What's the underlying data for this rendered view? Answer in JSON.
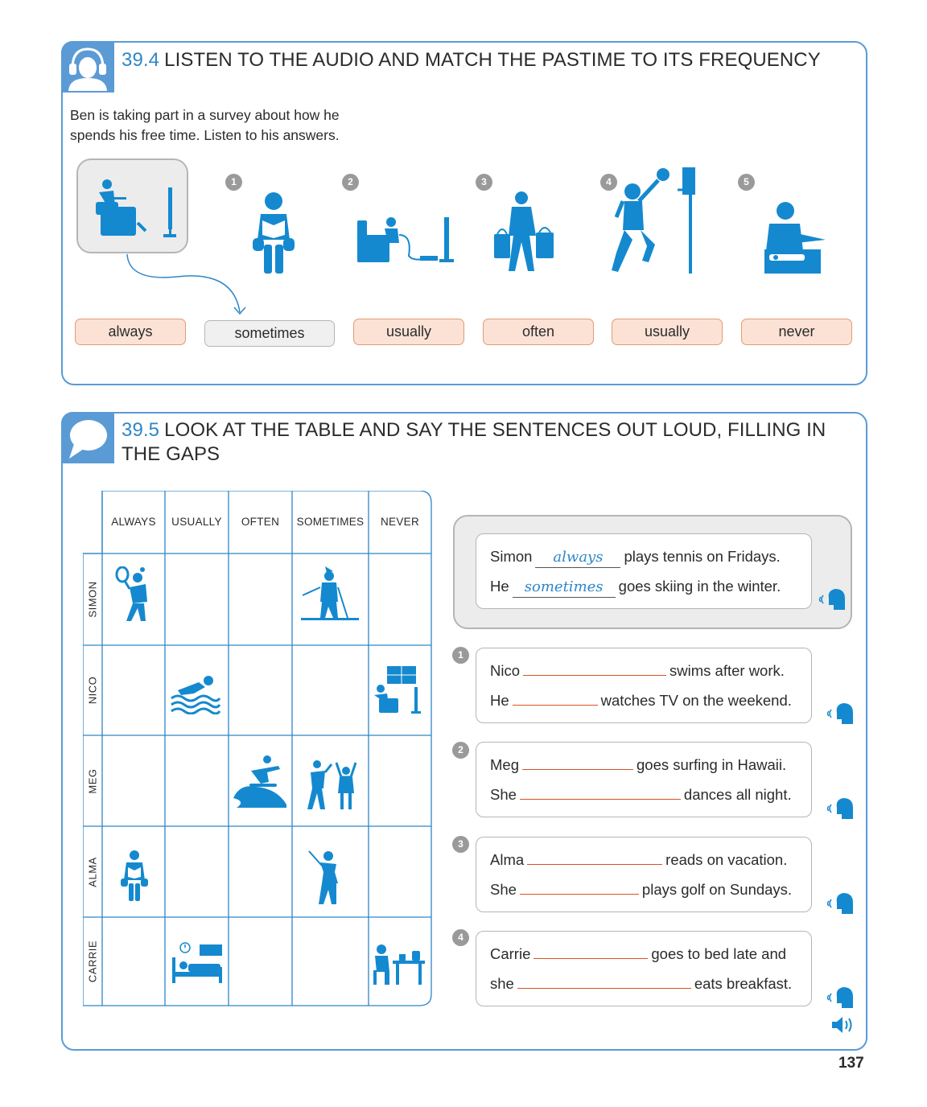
{
  "section1": {
    "number": "39.4",
    "title": "LISTEN TO THE AUDIO AND MATCH THE PASTIME TO ITS FREQUENCY",
    "intro_line1": "Ben is taking part in a survey about how he",
    "intro_line2": "spends his free time. Listen to his answers.",
    "items": [
      "1",
      "2",
      "3",
      "4",
      "5"
    ],
    "answers": [
      "always",
      "sometimes",
      "usually",
      "often",
      "usually",
      "never"
    ],
    "icon": "headphones-person-icon"
  },
  "section2": {
    "number": "39.5",
    "title": "LOOK AT THE TABLE AND SAY THE SENTENCES OUT LOUD, FILLING IN THE GAPS",
    "icon": "speech-bubble-icon",
    "columns": [
      "ALWAYS",
      "USUALLY",
      "OFTEN",
      "SOMETIMES",
      "NEVER"
    ],
    "rows": [
      "SIMON",
      "NICO",
      "MEG",
      "ALMA",
      "CARRIE"
    ],
    "example": {
      "l1_a": "Simon",
      "l1_fill": "always",
      "l1_b": "plays tennis on Fridays.",
      "l2_a": "He",
      "l2_fill": "sometimes",
      "l2_b": "goes skiing in the winter."
    },
    "questions": [
      {
        "num": "1",
        "l1_a": "Nico",
        "l1_b": "swims after work.",
        "l2_a": "He",
        "l2_b": "watches TV on the weekend."
      },
      {
        "num": "2",
        "l1_a": "Meg",
        "l1_b": "goes surfing in Hawaii.",
        "l2_a": "She",
        "l2_b": "dances all night."
      },
      {
        "num": "3",
        "l1_a": "Alma",
        "l1_b": "reads on vacation.",
        "l2_a": "She",
        "l2_b": "plays golf on Sundays."
      },
      {
        "num": "4",
        "l1_a": "Carrie",
        "l1_b": "goes to bed late and",
        "l2_a": "she",
        "l2_b": "eats breakfast."
      }
    ]
  },
  "page_number": "137",
  "colors": {
    "accent": "#2e86c8",
    "panel_border": "#5b9bd5",
    "icon_blue": "#1589cf",
    "answer_fill": "#fbe2d5",
    "answer_border": "#e39a74",
    "blank_line": "#d9541e"
  }
}
